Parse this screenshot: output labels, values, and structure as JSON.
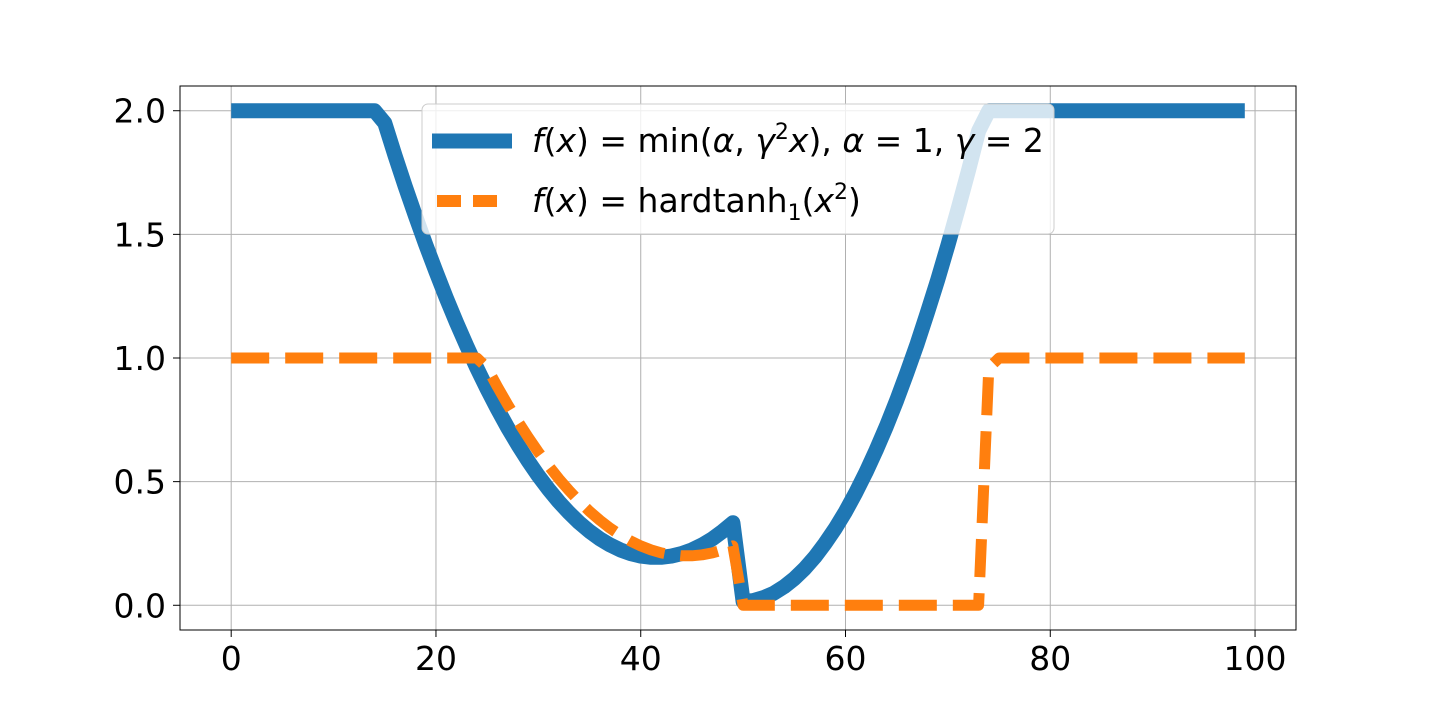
{
  "chart_data": {
    "type": "line",
    "xlim": [
      -5,
      104
    ],
    "ylim": [
      -0.1,
      2.1
    ],
    "xticks": [
      0,
      20,
      40,
      60,
      80,
      100
    ],
    "xtick_labels": [
      "0",
      "20",
      "40",
      "60",
      "80",
      "100"
    ],
    "yticks": [
      0.0,
      0.5,
      1.0,
      1.5,
      2.0
    ],
    "ytick_labels": [
      "0.0",
      "0.5",
      "1.0",
      "1.5",
      "2.0"
    ],
    "grid": true,
    "legend_position": "upper center",
    "series": [
      {
        "legend": {
          "f": "f",
          "open": "(",
          "x": "x",
          "mid": ") = min(",
          "alpha": "α",
          "comma1": ", ",
          "gamma": "γ",
          "sup": "2",
          "x2": "x",
          "close": "), ",
          "alpha2": "α",
          "eq1": " = 1, ",
          "gamma2": "γ",
          "eq2": " = 2"
        },
        "color": "#1f77b4",
        "style": "solid",
        "x": [
          0,
          1,
          2,
          3,
          4,
          5,
          6,
          7,
          8,
          9,
          10,
          11,
          12,
          13,
          14,
          15,
          16,
          17,
          18,
          19,
          20,
          21,
          22,
          23,
          24,
          25,
          26,
          27,
          28,
          29,
          30,
          31,
          32,
          33,
          34,
          35,
          36,
          37,
          38,
          39,
          40,
          41,
          42,
          43,
          44,
          45,
          46,
          47,
          48,
          49,
          50,
          51,
          52,
          53,
          54,
          55,
          56,
          57,
          58,
          59,
          60,
          61,
          62,
          63,
          64,
          65,
          66,
          67,
          68,
          69,
          70,
          71,
          72,
          73,
          74,
          75,
          76,
          77,
          78,
          79,
          80,
          81,
          82,
          83,
          84,
          85,
          86,
          87,
          88,
          89,
          90,
          91,
          92,
          93,
          94,
          95,
          96,
          97,
          98,
          99
        ],
        "y": [
          2,
          2,
          2,
          2,
          2,
          2,
          2,
          2,
          2,
          2,
          2,
          2,
          2,
          2,
          2,
          1.95,
          1.819,
          1.694,
          1.574,
          1.459,
          1.349,
          1.244,
          1.144,
          1.049,
          0.959,
          0.874,
          0.794,
          0.719,
          0.649,
          0.584,
          0.524,
          0.469,
          0.419,
          0.374,
          0.334,
          0.299,
          0.269,
          0.244,
          0.224,
          0.209,
          0.199,
          0.194,
          0.194,
          0.199,
          0.209,
          0.224,
          0.244,
          0.269,
          0.299,
          0.334,
          0.015,
          0.019,
          0.031,
          0.049,
          0.075,
          0.108,
          0.148,
          0.195,
          0.25,
          0.311,
          0.379,
          0.455,
          0.538,
          0.628,
          0.725,
          0.829,
          0.94,
          1.058,
          1.184,
          1.316,
          1.456,
          1.603,
          1.757,
          1.918,
          2,
          2,
          2,
          2,
          2,
          2,
          2,
          2,
          2,
          2,
          2,
          2,
          2,
          2,
          2,
          2,
          2,
          2,
          2,
          2,
          2,
          2,
          2,
          2,
          2,
          2
        ]
      },
      {
        "legend": {
          "f": "f",
          "open": "(",
          "x": "x",
          "mid": ") = hardtanh",
          "sub": "1",
          "open2": "(",
          "x2": "x",
          "sup": "2",
          "close": ")"
        },
        "color": "#ff7f0e",
        "style": "dashed",
        "x": [
          0,
          1,
          2,
          3,
          4,
          5,
          6,
          7,
          8,
          9,
          10,
          11,
          12,
          13,
          14,
          15,
          16,
          17,
          18,
          19,
          20,
          21,
          22,
          23,
          24,
          25,
          26,
          27,
          28,
          29,
          30,
          31,
          32,
          33,
          34,
          35,
          36,
          37,
          38,
          39,
          40,
          41,
          42,
          43,
          44,
          45,
          46,
          47,
          48,
          49,
          50,
          51,
          52,
          53,
          54,
          55,
          56,
          57,
          58,
          59,
          60,
          61,
          62,
          63,
          64,
          65,
          66,
          67,
          68,
          69,
          70,
          71,
          72,
          73,
          74,
          75,
          76,
          77,
          78,
          79,
          80,
          81,
          82,
          83,
          84,
          85,
          86,
          87,
          88,
          89,
          90,
          91,
          92,
          93,
          94,
          95,
          96,
          97,
          98,
          99
        ],
        "y": [
          1,
          1,
          1,
          1,
          1,
          1,
          1,
          1,
          1,
          1,
          1,
          1,
          1,
          1,
          1,
          1,
          1,
          1,
          1,
          1,
          1,
          1,
          1,
          1,
          1,
          0.96,
          0.884,
          0.812,
          0.744,
          0.68,
          0.62,
          0.564,
          0.512,
          0.464,
          0.42,
          0.38,
          0.344,
          0.312,
          0.284,
          0.26,
          0.24,
          0.224,
          0.212,
          0.204,
          0.2,
          0.2,
          0.204,
          0.212,
          0.224,
          0.24,
          0,
          0,
          0,
          0,
          0,
          0,
          0,
          0,
          0,
          0,
          0,
          0,
          0,
          0,
          0,
          0,
          0,
          0,
          0,
          0,
          0,
          0,
          0,
          0,
          0.96,
          1,
          1,
          1,
          1,
          1,
          1,
          1,
          1,
          1,
          1,
          1,
          1,
          1,
          1,
          1,
          1,
          1,
          1,
          1,
          1,
          1,
          1,
          1,
          1,
          1
        ]
      }
    ]
  }
}
